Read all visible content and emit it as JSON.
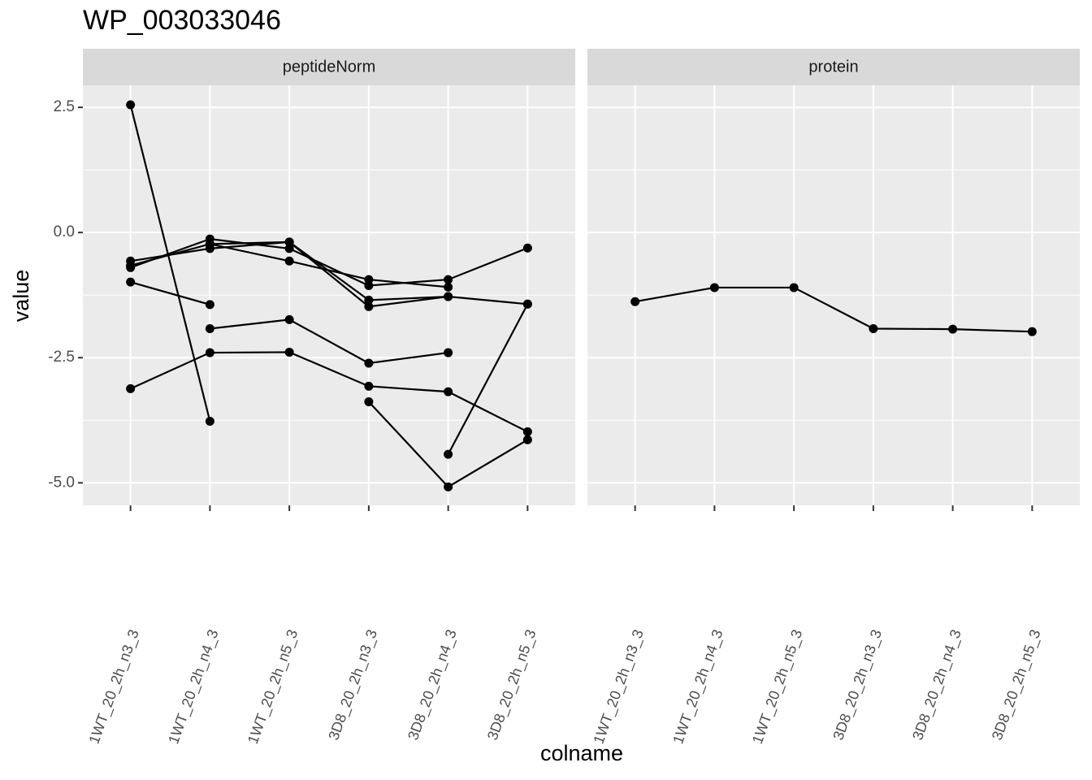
{
  "chart_data": [
    {
      "type": "line",
      "title": "WP_003033046",
      "facet": "peptideNorm",
      "x_label": "colname",
      "y_label": "value",
      "categories": [
        "1WT_20_2h_n3_3",
        "1WT_20_2h_n4_3",
        "1WT_20_2h_n5_3",
        "3D8_20_2h_n3_3",
        "3D8_20_2h_n4_3",
        "3D8_20_2h_n5_3"
      ],
      "ylim": [
        -5.45,
        2.94
      ],
      "yticks": [
        2.5,
        {
          "value": 0,
          "label": "0.0"
        },
        -2.5,
        {
          "value": -5,
          "label": "-5.0"
        }
      ],
      "grid": true,
      "color": "#000000",
      "series": [
        {
          "values": [
            2.55,
            -3.77,
            null,
            null,
            null,
            null
          ]
        },
        {
          "values": [
            -3.12,
            -2.4,
            -2.39,
            -3.07,
            -3.18,
            -3.98
          ]
        },
        {
          "values": [
            -0.99,
            -1.44,
            null,
            null,
            null,
            null
          ]
        },
        {
          "values": [
            null,
            -1.92,
            -1.74,
            -2.61,
            -2.4,
            null
          ]
        },
        {
          "values": [
            null,
            null,
            null,
            -3.38,
            -5.08,
            -4.14
          ]
        },
        {
          "values": [
            null,
            null,
            null,
            null,
            -4.43,
            -1.43
          ]
        },
        {
          "values": [
            -0.57,
            -0.32,
            -0.19,
            -1.48,
            -1.28,
            -1.43
          ]
        },
        {
          "values": [
            -0.7,
            -0.13,
            -0.32,
            -1.06,
            -0.94,
            -0.31
          ]
        },
        {
          "values": [
            -0.66,
            -0.23,
            -0.57,
            -0.94,
            -1.09,
            null
          ]
        },
        {
          "values": [
            null,
            -0.23,
            -0.19,
            -1.35,
            -1.28,
            null
          ]
        }
      ]
    },
    {
      "type": "line",
      "facet": "protein",
      "color": "#000000",
      "categories": [
        "1WT_20_2h_n3_3",
        "1WT_20_2h_n4_3",
        "1WT_20_2h_n5_3",
        "3D8_20_2h_n3_3",
        "3D8_20_2h_n4_3",
        "3D8_20_2h_n5_3"
      ],
      "series": [
        {
          "values": [
            -1.38,
            -1.1,
            -1.1,
            -1.92,
            -1.93,
            -1.98
          ]
        }
      ]
    }
  ]
}
